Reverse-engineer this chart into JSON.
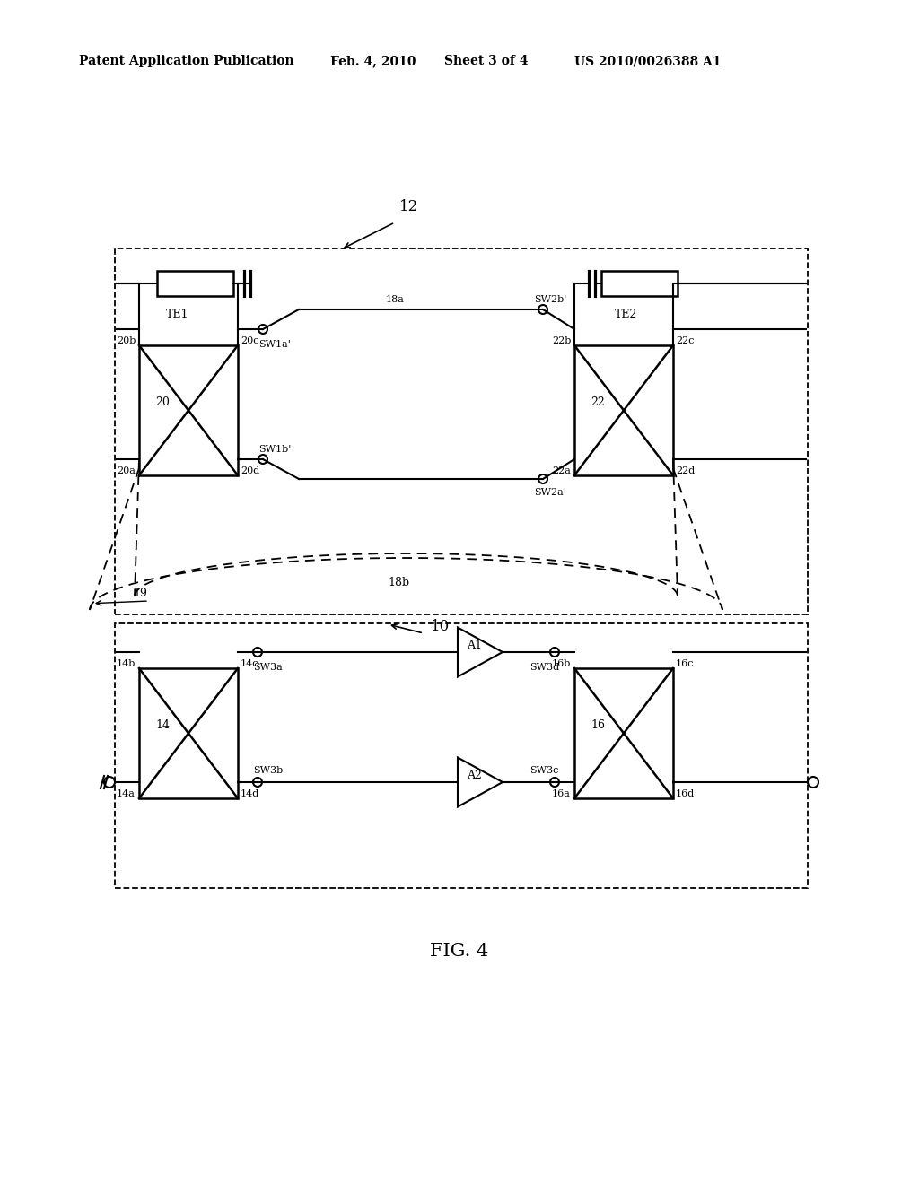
{
  "bg_color": "#ffffff",
  "header_text1": "Patent Application Publication",
  "header_text2": "Feb. 4, 2010",
  "header_text3": "Sheet 3 of 4",
  "header_text4": "US 2010/0026388 A1",
  "fig_label": "FIG. 4",
  "label_12": "12",
  "label_10": "10",
  "label_19": "19",
  "label_18b": "18b",
  "label_18a": "18a",
  "label_TE1": "TE1",
  "label_TE2": "TE2",
  "label_20": "20",
  "label_20a": "20a",
  "label_20b": "20b",
  "label_20c": "20c",
  "label_20d": "20d",
  "label_22": "22",
  "label_22a": "22a",
  "label_22b": "22b",
  "label_22c": "22c",
  "label_22d": "22d",
  "label_14": "14",
  "label_14a": "14a",
  "label_14b": "14b",
  "label_14c": "14c",
  "label_14d": "14d",
  "label_16": "16",
  "label_16a": "16a",
  "label_16b": "16b",
  "label_16c": "16c",
  "label_16d": "16d",
  "label_SW1a": "SW1a'",
  "label_SW1b": "SW1b'",
  "label_SW2a": "SW2a'",
  "label_SW2b": "SW2b'",
  "label_SW3a": "SW3a",
  "label_SW3b": "SW3b",
  "label_SW3c": "SW3c",
  "label_SW3d": "SW3d",
  "label_A1": "A1",
  "label_A2": "A2"
}
